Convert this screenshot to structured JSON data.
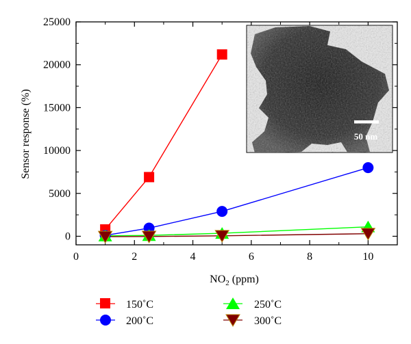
{
  "chart_data": {
    "type": "line",
    "xlabel_main": "NO",
    "xlabel_sub": "2",
    "xlabel_rest": " (ppm)",
    "ylabel": "Sensor response (%)",
    "xlim": [
      0,
      11
    ],
    "ylim": [
      -1000,
      25000
    ],
    "x_ticks": [
      0,
      2,
      4,
      6,
      8,
      10
    ],
    "y_ticks": [
      0,
      5000,
      10000,
      15000,
      20000,
      25000
    ],
    "x_tick_labels": [
      "0",
      "2",
      "4",
      "6",
      "8",
      "10"
    ],
    "y_tick_labels": [
      "0",
      "5000",
      "10000",
      "15000",
      "20000",
      "25000"
    ],
    "series": [
      {
        "name": "150˚C",
        "color": "#ff0000",
        "marker": "square",
        "x": [
          1,
          2.5,
          5
        ],
        "y": [
          800,
          6900,
          21200
        ]
      },
      {
        "name": "200˚C",
        "color": "#0000ff",
        "marker": "circle",
        "x": [
          1,
          2.5,
          5,
          10
        ],
        "y": [
          100,
          950,
          2900,
          8000
        ]
      },
      {
        "name": "250˚C",
        "color": "#00ff00",
        "marker": "triangle-up",
        "x": [
          1,
          2.5,
          5,
          10
        ],
        "y": [
          50,
          100,
          350,
          1100
        ]
      },
      {
        "name": "300˚C",
        "color": "#800000",
        "marker": "triangle-down",
        "x": [
          1,
          2.5,
          5,
          10
        ],
        "y": [
          -50,
          -30,
          50,
          300
        ]
      }
    ],
    "inset": {
      "type": "micrograph",
      "scale_bar_label": "50 nm"
    }
  }
}
